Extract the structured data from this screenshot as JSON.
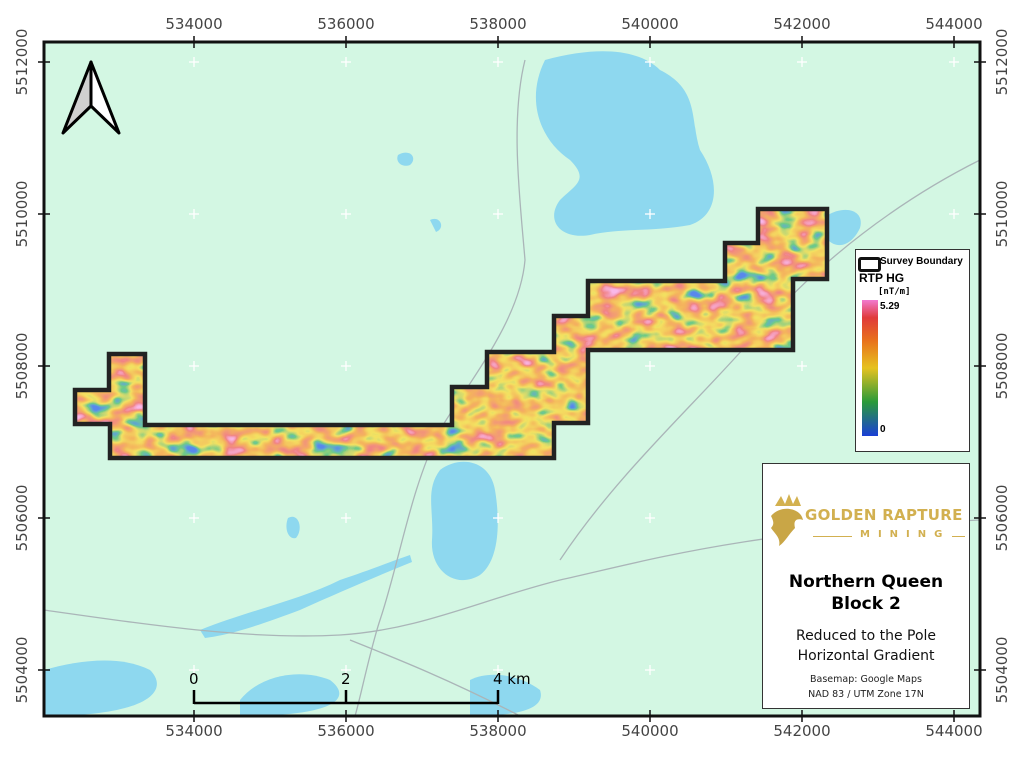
{
  "axes": {
    "x_ticks": [
      "534000",
      "536000",
      "538000",
      "540000",
      "542000",
      "544000"
    ],
    "y_ticks": [
      "5512000",
      "5510000",
      "5508000",
      "5506000",
      "5504000"
    ]
  },
  "legend": {
    "boundary_label": "Survey Boundary",
    "layer_title": "RTP HG",
    "unit": "[nT/m]",
    "max": "5.29",
    "min": "0",
    "ramp_colors": [
      "#1a3fd6",
      "#2a9a3a",
      "#e6c21e",
      "#e8721c",
      "#e03a3a",
      "#f27ad0"
    ]
  },
  "title_box": {
    "logo_line1": "GOLDEN RAPTURE",
    "logo_line2": "MINING",
    "title_line1": "Northern Queen",
    "title_line2": "Block 2",
    "subtitle_line1": "Reduced to the Pole",
    "subtitle_line2": "Horizontal Gradient",
    "basemap": "Basemap: Google Maps",
    "crs": "NAD 83 / UTM Zone 17N"
  },
  "scale_bar": {
    "labels": [
      "0",
      "2",
      "4 km"
    ]
  },
  "colors": {
    "land": "#d3f7e3",
    "water": "#8ed8ef",
    "boundary": "#222222"
  }
}
